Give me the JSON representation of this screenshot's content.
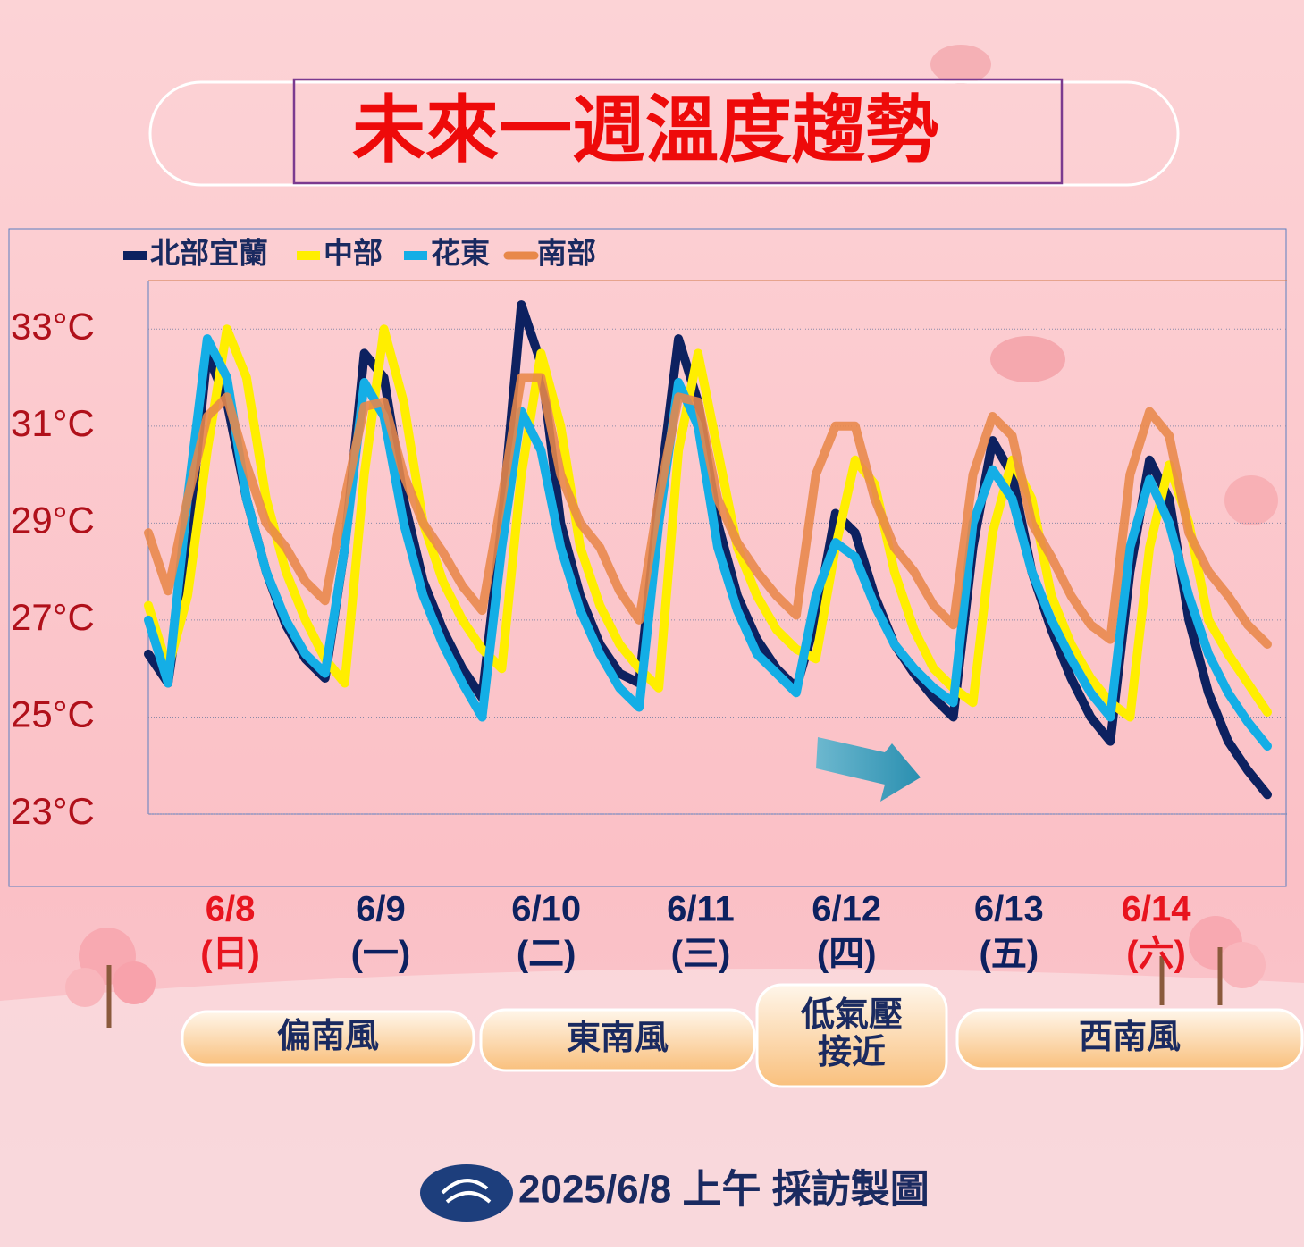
{
  "chart_data": {
    "type": "line",
    "title": "未來一週溫度趨勢",
    "x": [
      3,
      6,
      9,
      12,
      15,
      18,
      21,
      24,
      27,
      30,
      33,
      36,
      39,
      42,
      45,
      48,
      51,
      54,
      57,
      60,
      63,
      66,
      69,
      72,
      75,
      78,
      81,
      84,
      87,
      90,
      93,
      96,
      99,
      102,
      105,
      108,
      111,
      114,
      117,
      120,
      123,
      126,
      129,
      132,
      135,
      138,
      141,
      144,
      147,
      150,
      153,
      156,
      159,
      162,
      165,
      168,
      171,
      174
    ],
    "xlim": [
      3,
      177
    ],
    "xticks": [
      {
        "value": 15.5,
        "label": "6/8"
      },
      {
        "value": 38.5,
        "label": "6/9"
      },
      {
        "value": 63.8,
        "label": "6/10"
      },
      {
        "value": 87.4,
        "label": "6/11"
      },
      {
        "value": 109.7,
        "label": "6/12"
      },
      {
        "value": 134.5,
        "label": "6/13"
      },
      {
        "value": 157,
        "label": "6/14"
      }
    ],
    "weekdays": [
      "(日)",
      "(一)",
      "(二)",
      "(三)",
      "(四)",
      "(五)",
      "(六)"
    ],
    "xtick_colors": [
      "#e8141e",
      "#0d2160",
      "#0d2160",
      "#0d2160",
      "#0d2160",
      "#0d2160",
      "#e8141e"
    ],
    "ylim": [
      23,
      34
    ],
    "yticks": [
      {
        "value": 23,
        "label": "23°C"
      },
      {
        "value": 25,
        "label": "25°C"
      },
      {
        "value": 27,
        "label": "27°C"
      },
      {
        "value": 29,
        "label": "29°C"
      },
      {
        "value": 31,
        "label": "31°C"
      },
      {
        "value": 33,
        "label": "33°C"
      }
    ],
    "grid": true,
    "series": [
      {
        "name": "北部宜蘭",
        "color": "#0d2160",
        "values": [
          26.3,
          25.7,
          28.5,
          32.5,
          31.5,
          29.5,
          28.0,
          26.9,
          26.2,
          25.8,
          28.5,
          32.5,
          32.0,
          29.5,
          27.8,
          26.8,
          26.0,
          25.4,
          29.0,
          33.5,
          32.3,
          29.0,
          27.5,
          26.5,
          25.9,
          25.7,
          29.5,
          32.8,
          31.5,
          29.0,
          27.5,
          26.6,
          26.0,
          25.6,
          27.0,
          29.2,
          28.8,
          27.5,
          26.5,
          25.9,
          25.4,
          25.0,
          28.5,
          30.7,
          30.0,
          28.0,
          26.8,
          25.8,
          25.0,
          24.5,
          28.0,
          30.3,
          29.5,
          27.0,
          25.5,
          24.5,
          23.9,
          23.4
        ]
      },
      {
        "name": "中部",
        "color": "#ffee00",
        "values": [
          27.3,
          26.0,
          27.5,
          30.5,
          33.0,
          32.0,
          29.5,
          28.0,
          27.0,
          26.2,
          25.7,
          30.0,
          33.0,
          31.5,
          29.0,
          27.8,
          27.0,
          26.4,
          26.0,
          30.0,
          32.5,
          31.0,
          28.5,
          27.3,
          26.5,
          26.0,
          25.6,
          30.5,
          32.5,
          30.5,
          28.5,
          27.5,
          26.8,
          26.4,
          26.2,
          28.5,
          30.3,
          29.8,
          28.0,
          26.8,
          26.0,
          25.6,
          25.3,
          28.8,
          30.3,
          29.5,
          27.5,
          26.5,
          25.8,
          25.3,
          25.0,
          28.5,
          30.2,
          29.0,
          27.0,
          26.3,
          25.7,
          25.1
        ]
      },
      {
        "name": "花東",
        "color": "#14aee6",
        "values": [
          27.0,
          25.7,
          29.5,
          32.8,
          32.0,
          29.5,
          28.0,
          27.0,
          26.3,
          25.9,
          28.5,
          31.9,
          31.2,
          29.0,
          27.5,
          26.5,
          25.7,
          25.0,
          28.5,
          31.3,
          30.5,
          28.5,
          27.2,
          26.3,
          25.6,
          25.2,
          29.0,
          31.9,
          31.0,
          28.5,
          27.2,
          26.3,
          25.9,
          25.5,
          27.5,
          28.6,
          28.3,
          27.3,
          26.5,
          26.0,
          25.6,
          25.3,
          29.0,
          30.1,
          29.5,
          28.0,
          27.0,
          26.2,
          25.5,
          25.0,
          28.5,
          29.9,
          29.0,
          27.5,
          26.3,
          25.5,
          24.9,
          24.4
        ]
      },
      {
        "name": "南部",
        "color": "#e8884a",
        "values": [
          28.8,
          27.6,
          29.5,
          31.2,
          31.6,
          30.2,
          29.0,
          28.5,
          27.8,
          27.4,
          29.5,
          31.4,
          31.5,
          30.0,
          29.0,
          28.4,
          27.7,
          27.2,
          29.5,
          32.0,
          32.0,
          30.0,
          29.0,
          28.5,
          27.6,
          27.0,
          29.5,
          31.6,
          31.5,
          29.5,
          28.6,
          28.0,
          27.5,
          27.1,
          30.0,
          31.0,
          31.0,
          29.5,
          28.5,
          28.0,
          27.3,
          26.9,
          30.0,
          31.2,
          30.8,
          29.0,
          28.3,
          27.5,
          26.9,
          26.6,
          30.0,
          31.3,
          30.8,
          28.8,
          28.0,
          27.5,
          26.9,
          26.5
        ]
      }
    ],
    "wind_bands": [
      [
        "偏南風"
      ],
      [
        "東南風"
      ],
      [
        "低氣壓",
        "接近"
      ],
      [
        "西南風"
      ]
    ],
    "footer": "2025/6/8 上午 採訪製圖"
  }
}
